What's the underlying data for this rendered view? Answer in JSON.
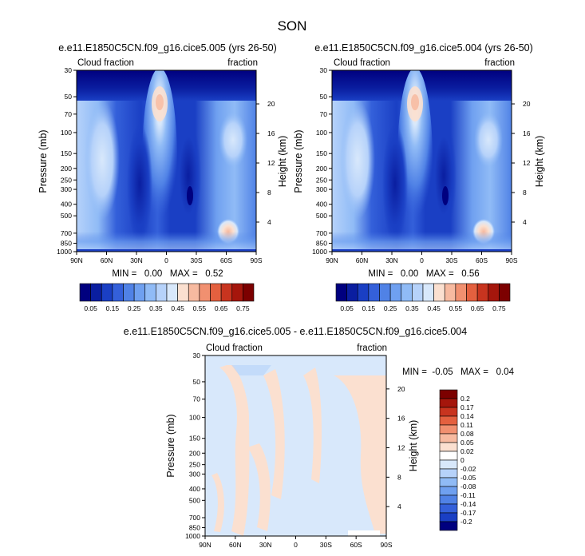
{
  "title": "SON",
  "chart_data": [
    {
      "type": "heatmap",
      "title": "e.e11.E1850C5CN.f09_g16.cice5.005 (yrs 26-50)",
      "left_label": "Cloud fraction",
      "right_label": "fraction",
      "xlabel": "",
      "ylabel": "Pressure (mb)",
      "y2label": "Height (km)",
      "xticks": [
        "90N",
        "60N",
        "30N",
        "0",
        "30S",
        "60S",
        "90S"
      ],
      "yticks": [
        "30",
        "50",
        "70",
        "100",
        "150",
        "200",
        "250",
        "300",
        "400",
        "500",
        "700",
        "850",
        "1000"
      ],
      "y2ticks": [
        "20",
        "16",
        "12",
        "8",
        "4"
      ],
      "stats": "MIN =   0.00   MAX =   0.52",
      "min": 0.0,
      "max": 0.52,
      "levels": [
        "0.05",
        "0.15",
        "0.25",
        "0.35",
        "0.45",
        "0.55",
        "0.65",
        "0.75"
      ]
    },
    {
      "type": "heatmap",
      "title": "e.e11.E1850C5CN.f09_g16.cice5.004 (yrs 26-50)",
      "left_label": "Cloud fraction",
      "right_label": "fraction",
      "xlabel": "",
      "ylabel": "Pressure (mb)",
      "y2label": "Height (km)",
      "xticks": [
        "90N",
        "60N",
        "30N",
        "0",
        "30S",
        "60S",
        "90S"
      ],
      "yticks": [
        "30",
        "50",
        "70",
        "100",
        "150",
        "200",
        "250",
        "300",
        "400",
        "500",
        "700",
        "850",
        "1000"
      ],
      "y2ticks": [
        "20",
        "16",
        "12",
        "8",
        "4"
      ],
      "stats": "MIN =   0.00   MAX =   0.56",
      "min": 0.0,
      "max": 0.56,
      "levels": [
        "0.05",
        "0.15",
        "0.25",
        "0.35",
        "0.45",
        "0.55",
        "0.65",
        "0.75"
      ]
    },
    {
      "type": "heatmap",
      "title": "e.e11.E1850C5CN.f09_g16.cice5.005 - e.e11.E1850C5CN.f09_g16.cice5.004",
      "left_label": "Cloud fraction",
      "right_label": "fraction",
      "xlabel": "",
      "ylabel": "Pressure (mb)",
      "y2label": "Height (km)",
      "xticks": [
        "90N",
        "60N",
        "30N",
        "0",
        "30S",
        "60S",
        "90S"
      ],
      "yticks": [
        "30",
        "50",
        "70",
        "100",
        "150",
        "200",
        "250",
        "300",
        "400",
        "500",
        "700",
        "850",
        "1000"
      ],
      "y2ticks": [
        "20",
        "16",
        "12",
        "8",
        "4"
      ],
      "stats": "MIN =  -0.05   MAX =   0.04",
      "min": -0.05,
      "max": 0.04,
      "levels": [
        "0.2",
        "0.17",
        "0.14",
        "0.11",
        "0.08",
        "0.05",
        "0.02",
        "0",
        "-0.02",
        "-0.05",
        "-0.08",
        "-0.11",
        "-0.14",
        "-0.17",
        "-0.2"
      ]
    }
  ],
  "colors": {
    "seq_scale": [
      "#00007f",
      "#0a1ea0",
      "#1a3fc4",
      "#3460da",
      "#5082e6",
      "#6fa0f0",
      "#90bbf6",
      "#b6d2fa",
      "#d8e8fb",
      "#fbe0d0",
      "#f7baa0",
      "#f19070",
      "#e4603f",
      "#c8341f",
      "#a5160c",
      "#7c0000"
    ],
    "diff_scale": [
      "#7c0000",
      "#a5160c",
      "#c8341f",
      "#e4603f",
      "#f19070",
      "#f7baa0",
      "#fbe0d0",
      "#ffffff",
      "#d8e8fb",
      "#b6d2fa",
      "#90bbf6",
      "#6fa0f0",
      "#5082e6",
      "#3460da",
      "#1a3fc4",
      "#00007f"
    ]
  }
}
